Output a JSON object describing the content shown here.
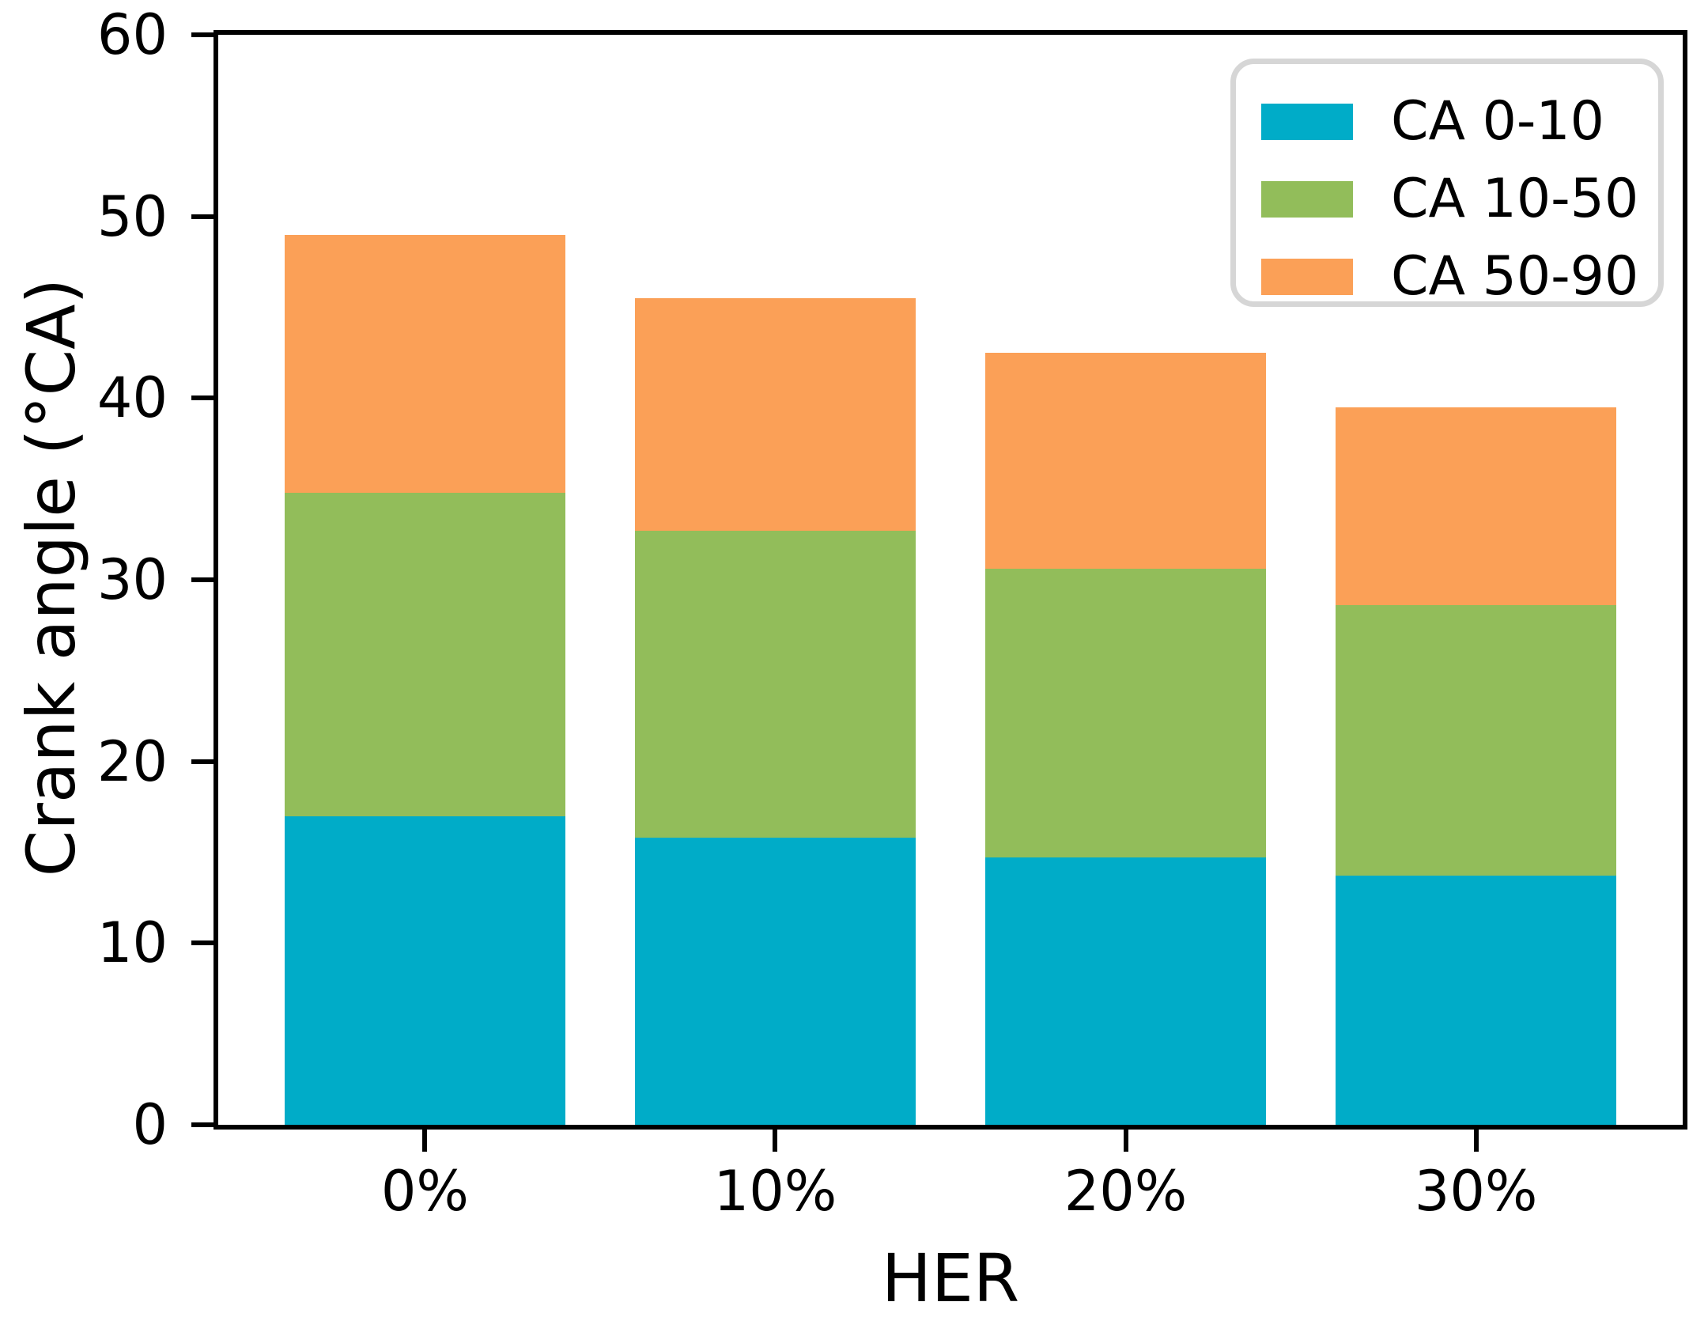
{
  "chart_data": {
    "type": "bar",
    "stacked": true,
    "title": "",
    "xlabel": "HER",
    "ylabel": "Crank angle (°CA)",
    "categories": [
      "0%",
      "10%",
      "20%",
      "30%"
    ],
    "series": [
      {
        "name": "CA 0-10",
        "color": "#00ACC8",
        "values": [
          17.0,
          15.8,
          14.7,
          13.7
        ]
      },
      {
        "name": "CA 10-50",
        "color": "#92BD5A",
        "values": [
          17.8,
          16.9,
          15.9,
          14.9
        ]
      },
      {
        "name": "CA 50-90",
        "color": "#FBA057",
        "values": [
          14.2,
          12.8,
          11.9,
          10.9
        ]
      }
    ],
    "stack_totals": [
      49.0,
      45.5,
      42.5,
      39.5
    ],
    "ylim": [
      0,
      60
    ],
    "yticks": [
      0,
      10,
      20,
      30,
      40,
      50,
      60
    ],
    "grid": false,
    "legend_position": "upper right",
    "colors": {
      "axis": "#000000",
      "legend_border": "#d6d6d6",
      "background": "#ffffff"
    }
  }
}
